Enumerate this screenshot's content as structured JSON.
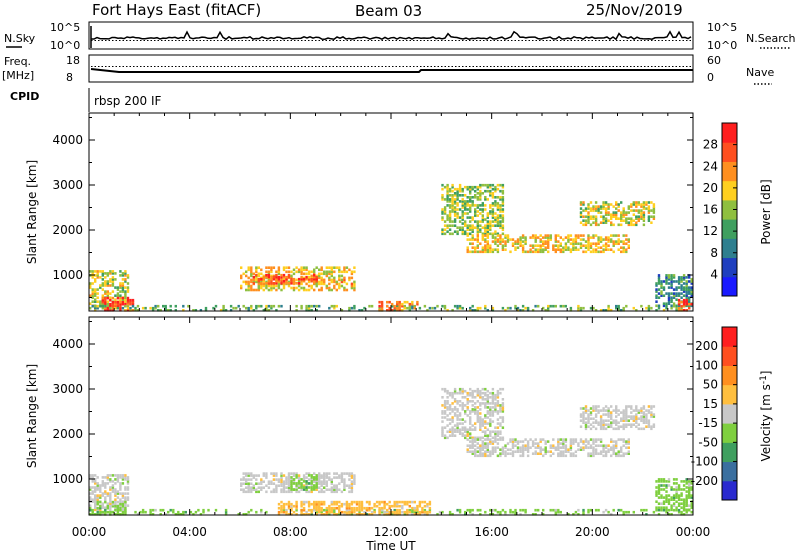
{
  "title": {
    "station": "Fort Hays East (fitACF)",
    "beam": "Beam 03",
    "date": "25/Nov/2019"
  },
  "top_panels": {
    "nsky_label": "N.Sky",
    "nsky_ticks": [
      "10^5",
      "10^0"
    ],
    "nsearch_label": "N.Search",
    "nsearch_ticks": [
      "10^5",
      "10^0"
    ],
    "freq_label": "Freq.",
    "freq_unit": "[MHz]",
    "freq_ticks": [
      "18",
      "8"
    ],
    "nave_label": "Nave",
    "nave_ticks": [
      "60",
      "0"
    ],
    "cpid_label": "CPID",
    "cpid_value": "rbsp 200 IF"
  },
  "chart_data": [
    {
      "type": "heatmap",
      "name": "power",
      "ylabel": "Slant Range [km]",
      "xlabel": "",
      "x_ticks": [
        "00:00",
        "04:00",
        "08:00",
        "12:00",
        "16:00",
        "20:00",
        "00:00"
      ],
      "x_range_hours": [
        0,
        24
      ],
      "y_ticks": [
        1000,
        2000,
        3000,
        4000
      ],
      "y_range_km": [
        200,
        4600
      ],
      "colorbar": {
        "label": "Power [dB]",
        "ticks": [
          4,
          8,
          12,
          16,
          20,
          24,
          28
        ],
        "range": [
          0,
          32
        ],
        "colors": [
          "#1a1aff",
          "#1f3fbf",
          "#2e7f8f",
          "#3f9f5f",
          "#8fbf3f",
          "#ffcf1f",
          "#ff8f1f",
          "#ff4f1f",
          "#ff1f1f"
        ]
      },
      "regions": [
        {
          "t": [
            0.0,
            1.6
          ],
          "r": [
            300,
            1100
          ],
          "v": 18
        },
        {
          "t": [
            0.5,
            1.8
          ],
          "r": [
            200,
            500
          ],
          "v": 28
        },
        {
          "t": [
            6.0,
            10.5
          ],
          "r": [
            650,
            1150
          ],
          "v": 20
        },
        {
          "t": [
            6.5,
            9.0
          ],
          "r": [
            800,
            1000
          ],
          "v": 26
        },
        {
          "t": [
            0.0,
            24.0
          ],
          "r": [
            200,
            320
          ],
          "v": 14
        },
        {
          "t": [
            11.5,
            13.0
          ],
          "r": [
            200,
            400
          ],
          "v": 24
        },
        {
          "t": [
            14.0,
            16.5
          ],
          "r": [
            1900,
            3000
          ],
          "v": 16
        },
        {
          "t": [
            15.0,
            21.5
          ],
          "r": [
            1500,
            1900
          ],
          "v": 20
        },
        {
          "t": [
            19.5,
            22.5
          ],
          "r": [
            2100,
            2600
          ],
          "v": 18
        },
        {
          "t": [
            22.5,
            24.0
          ],
          "r": [
            300,
            1000
          ],
          "v": 10
        },
        {
          "t": [
            23.4,
            24.0
          ],
          "r": [
            200,
            450
          ],
          "v": 28
        }
      ]
    },
    {
      "type": "heatmap",
      "name": "velocity",
      "ylabel": "Slant Range [km]",
      "xlabel": "Time UT",
      "x_ticks": [
        "00:00",
        "04:00",
        "08:00",
        "12:00",
        "16:00",
        "20:00",
        "00:00"
      ],
      "x_range_hours": [
        0,
        24
      ],
      "y_ticks": [
        1000,
        2000,
        3000,
        4000
      ],
      "y_range_km": [
        200,
        4600
      ],
      "colorbar": {
        "label": "Velocity [m s^-1]",
        "ticks": [
          "200",
          "100",
          "50",
          "15",
          "-15",
          "-50",
          "-100",
          "-200"
        ],
        "colors": [
          "#2a2acf",
          "#3a6f9f",
          "#3f9f5f",
          "#7fcf3f",
          "#c8c8c8",
          "#ffbf3f",
          "#ff8f1f",
          "#ff4f1f",
          "#ff1f1f"
        ]
      },
      "regions": [
        {
          "t": [
            0.0,
            1.6
          ],
          "r": [
            300,
            1100
          ],
          "c": 4
        },
        {
          "t": [
            0.3,
            1.5
          ],
          "r": [
            200,
            500
          ],
          "c": 3
        },
        {
          "t": [
            6.0,
            10.5
          ],
          "r": [
            700,
            1150
          ],
          "c": 4
        },
        {
          "t": [
            8.0,
            9.0
          ],
          "r": [
            750,
            1100
          ],
          "c": 3
        },
        {
          "t": [
            0.0,
            24.0
          ],
          "r": [
            200,
            320
          ],
          "c": 3
        },
        {
          "t": [
            7.5,
            13.5
          ],
          "r": [
            200,
            500
          ],
          "c": 5
        },
        {
          "t": [
            14.0,
            16.5
          ],
          "r": [
            1900,
            3000
          ],
          "c": 4
        },
        {
          "t": [
            15.0,
            21.5
          ],
          "r": [
            1500,
            1900
          ],
          "c": 4
        },
        {
          "t": [
            19.5,
            22.5
          ],
          "r": [
            2100,
            2600
          ],
          "c": 4
        },
        {
          "t": [
            22.5,
            24.0
          ],
          "r": [
            300,
            1000
          ],
          "c": 3
        }
      ]
    }
  ]
}
